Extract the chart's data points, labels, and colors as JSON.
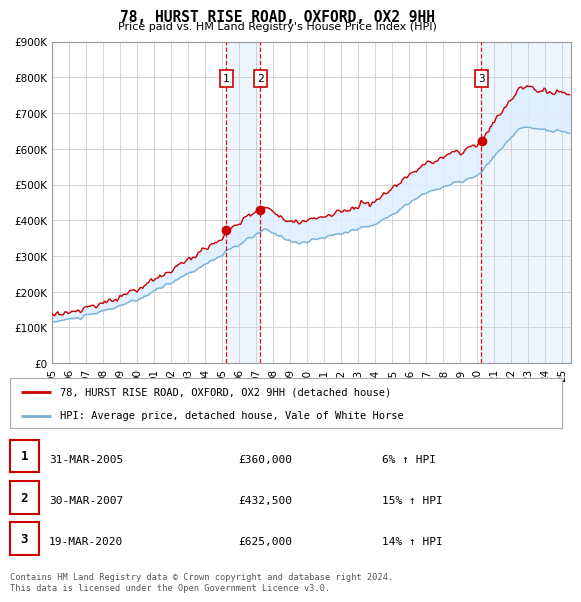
{
  "title": "78, HURST RISE ROAD, OXFORD, OX2 9HH",
  "subtitle": "Price paid vs. HM Land Registry's House Price Index (HPI)",
  "ylabel_ticks": [
    "£0",
    "£100K",
    "£200K",
    "£300K",
    "£400K",
    "£500K",
    "£600K",
    "£700K",
    "£800K",
    "£900K"
  ],
  "ylim": [
    0,
    900000
  ],
  "xlim_start": 1995.0,
  "xlim_end": 2025.5,
  "background_color": "#ffffff",
  "grid_color": "#cccccc",
  "hpi_fill_color": "#ddeeff",
  "hpi_line_color": "#7bafd4",
  "price_line_color": "#cc0000",
  "vline_color": "#cc0000",
  "transactions": [
    {
      "label": "1",
      "date_num": 2005.25,
      "price": 360000
    },
    {
      "label": "2",
      "date_num": 2007.25,
      "price": 432500
    },
    {
      "label": "3",
      "date_num": 2020.22,
      "price": 625000
    }
  ],
  "legend_entries": [
    "78, HURST RISE ROAD, OXFORD, OX2 9HH (detached house)",
    "HPI: Average price, detached house, Vale of White Horse"
  ],
  "table_rows": [
    {
      "num": "1",
      "date": "31-MAR-2005",
      "price": "£360,000",
      "change": "6% ↑ HPI"
    },
    {
      "num": "2",
      "date": "30-MAR-2007",
      "price": "£432,500",
      "change": "15% ↑ HPI"
    },
    {
      "num": "3",
      "date": "19-MAR-2020",
      "price": "£625,000",
      "change": "14% ↑ HPI"
    }
  ],
  "footer": "Contains HM Land Registry data © Crown copyright and database right 2024.\nThis data is licensed under the Open Government Licence v3.0."
}
